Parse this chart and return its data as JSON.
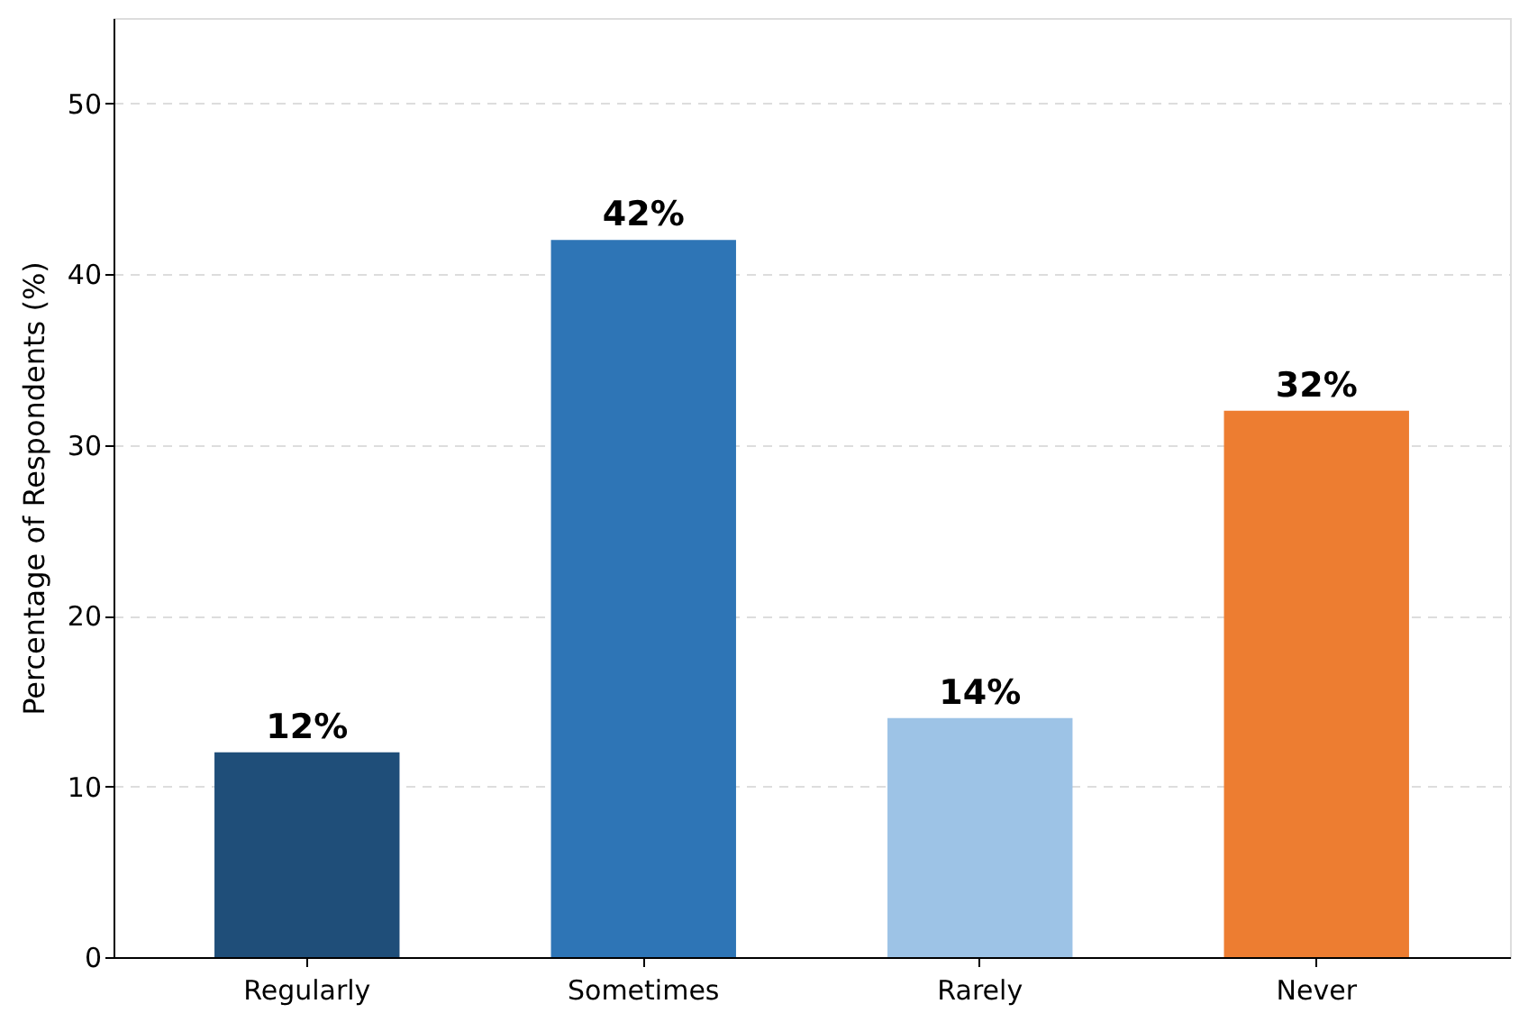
{
  "chart_data": {
    "type": "bar",
    "ylabel": "Percentage of Respondents (%)",
    "categories": [
      "Regularly",
      "Sometimes",
      "Rarely",
      "Never"
    ],
    "values": [
      12,
      42,
      14,
      32
    ],
    "colors": [
      "#1f4e79",
      "#2e75b6",
      "#9dc3e6",
      "#ed7d31"
    ],
    "value_labels": [
      "12%",
      "42%",
      "14%",
      "32%"
    ],
    "ylim": [
      0,
      55
    ],
    "yticks": [
      0,
      10,
      20,
      30,
      40,
      50
    ],
    "grid": "y"
  }
}
